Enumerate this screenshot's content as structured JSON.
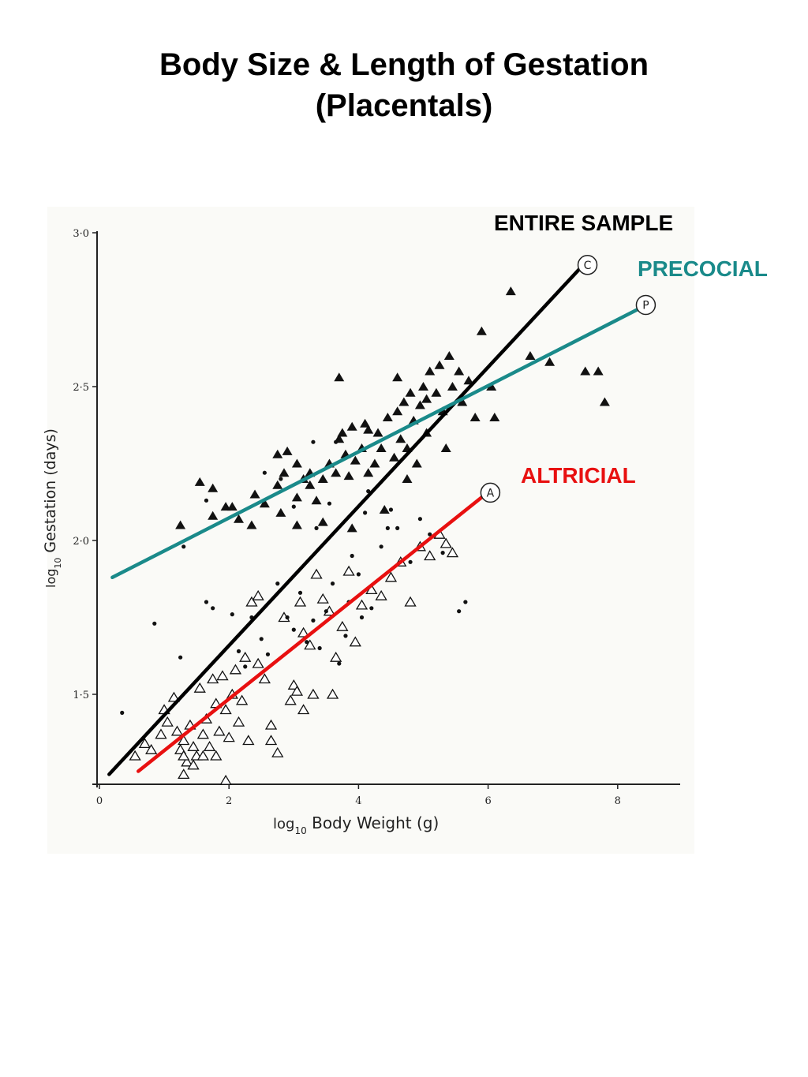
{
  "title": {
    "line1": "Body Size & Length of Gestation",
    "line2": "(Placentals)"
  },
  "labels": {
    "entire": "ENTIRE SAMPLE",
    "precocial": "PRECOCIAL",
    "altricial": "ALTRICIAL"
  },
  "colors": {
    "entire": "#000000",
    "precocial": "#1a8a8a",
    "altricial": "#e81010"
  },
  "chart_data": {
    "type": "scatter",
    "xlabel_log": "log",
    "xlabel_sub": "10",
    "xlabel_rest": "Body  Weight    (g)",
    "ylabel_log": "log",
    "ylabel_sub": "10",
    "ylabel_rest": "Gestation    (days)",
    "xlim": [
      0,
      9
    ],
    "ylim": [
      1.22,
      3.0
    ],
    "xticks": [
      {
        "v": 0,
        "t": "0"
      },
      {
        "v": 2,
        "t": "2"
      },
      {
        "v": 4,
        "t": "4"
      },
      {
        "v": 6,
        "t": "6"
      },
      {
        "v": 8,
        "t": "8"
      }
    ],
    "yticks": [
      {
        "v": 1.5,
        "t": "1·5"
      },
      {
        "v": 2.0,
        "t": "2·0"
      },
      {
        "v": 2.5,
        "t": "2·5"
      },
      {
        "v": 3.0,
        "t": "3·0"
      }
    ],
    "lines": [
      {
        "name": "C",
        "x1": 0.15,
        "y1": 1.24,
        "x2": 7.4,
        "y2": 2.88,
        "color": "#000000"
      },
      {
        "name": "P",
        "x1": 0.2,
        "y1": 1.88,
        "x2": 8.3,
        "y2": 2.75,
        "color": "#1a8a8a"
      },
      {
        "name": "A",
        "x1": 0.6,
        "y1": 1.25,
        "x2": 5.9,
        "y2": 2.14,
        "color": "#e81010"
      }
    ],
    "series": [
      {
        "marker": "filled-triangle",
        "points": [
          [
            1.25,
            2.05
          ],
          [
            1.55,
            2.19
          ],
          [
            1.75,
            2.17
          ],
          [
            1.75,
            2.08
          ],
          [
            1.95,
            2.11
          ],
          [
            2.15,
            2.07
          ],
          [
            2.35,
            2.05
          ],
          [
            2.4,
            2.15
          ],
          [
            2.55,
            2.12
          ],
          [
            2.75,
            2.18
          ],
          [
            2.85,
            2.22
          ],
          [
            2.75,
            2.28
          ],
          [
            2.9,
            2.29
          ],
          [
            3.05,
            2.25
          ],
          [
            3.05,
            2.14
          ],
          [
            3.15,
            2.2
          ],
          [
            3.25,
            2.22
          ],
          [
            3.35,
            2.13
          ],
          [
            3.45,
            2.2
          ],
          [
            3.55,
            2.25
          ],
          [
            3.65,
            2.22
          ],
          [
            3.7,
            2.33
          ],
          [
            3.75,
            2.35
          ],
          [
            3.8,
            2.28
          ],
          [
            3.85,
            2.21
          ],
          [
            3.9,
            2.37
          ],
          [
            3.95,
            2.26
          ],
          [
            4.05,
            2.3
          ],
          [
            4.1,
            2.38
          ],
          [
            4.15,
            2.22
          ],
          [
            4.25,
            2.25
          ],
          [
            4.3,
            2.35
          ],
          [
            4.35,
            2.3
          ],
          [
            4.45,
            2.4
          ],
          [
            4.55,
            2.27
          ],
          [
            4.6,
            2.42
          ],
          [
            4.65,
            2.33
          ],
          [
            4.7,
            2.45
          ],
          [
            4.75,
            2.3
          ],
          [
            4.8,
            2.48
          ],
          [
            4.85,
            2.39
          ],
          [
            4.9,
            2.25
          ],
          [
            4.95,
            2.44
          ],
          [
            5.0,
            2.5
          ],
          [
            5.05,
            2.35
          ],
          [
            5.1,
            2.55
          ],
          [
            5.2,
            2.48
          ],
          [
            5.25,
            2.57
          ],
          [
            5.3,
            2.42
          ],
          [
            5.4,
            2.6
          ],
          [
            5.45,
            2.5
          ],
          [
            5.55,
            2.55
          ],
          [
            5.6,
            2.45
          ],
          [
            5.7,
            2.52
          ],
          [
            5.8,
            2.4
          ],
          [
            5.9,
            2.68
          ],
          [
            6.05,
            2.5
          ],
          [
            6.1,
            2.4
          ],
          [
            6.35,
            2.81
          ],
          [
            6.65,
            2.6
          ],
          [
            6.95,
            2.58
          ],
          [
            7.5,
            2.55
          ],
          [
            7.7,
            2.55
          ],
          [
            7.8,
            2.45
          ],
          [
            3.7,
            2.53
          ],
          [
            4.6,
            2.53
          ],
          [
            3.9,
            2.04
          ],
          [
            3.45,
            2.06
          ],
          [
            3.05,
            2.05
          ],
          [
            2.8,
            2.09
          ],
          [
            4.4,
            2.1
          ],
          [
            5.35,
            2.3
          ],
          [
            2.05,
            2.11
          ],
          [
            3.25,
            2.18
          ],
          [
            4.75,
            2.2
          ],
          [
            5.05,
            2.46
          ],
          [
            4.15,
            2.36
          ]
        ]
      },
      {
        "marker": "open-triangle",
        "points": [
          [
            0.7,
            1.34
          ],
          [
            0.8,
            1.32
          ],
          [
            0.95,
            1.37
          ],
          [
            1.0,
            1.45
          ],
          [
            1.05,
            1.41
          ],
          [
            1.15,
            1.49
          ],
          [
            1.2,
            1.38
          ],
          [
            1.25,
            1.32
          ],
          [
            1.3,
            1.35
          ],
          [
            1.35,
            1.28
          ],
          [
            1.4,
            1.4
          ],
          [
            1.45,
            1.33
          ],
          [
            1.5,
            1.3
          ],
          [
            1.55,
            1.52
          ],
          [
            1.6,
            1.37
          ],
          [
            1.65,
            1.42
          ],
          [
            1.7,
            1.33
          ],
          [
            1.75,
            1.55
          ],
          [
            1.8,
            1.47
          ],
          [
            1.85,
            1.38
          ],
          [
            1.9,
            1.56
          ],
          [
            1.95,
            1.45
          ],
          [
            2.0,
            1.36
          ],
          [
            2.05,
            1.5
          ],
          [
            2.1,
            1.58
          ],
          [
            2.15,
            1.41
          ],
          [
            2.2,
            1.48
          ],
          [
            2.25,
            1.62
          ],
          [
            2.3,
            1.35
          ],
          [
            2.35,
            1.8
          ],
          [
            2.45,
            1.82
          ],
          [
            2.55,
            1.55
          ],
          [
            2.65,
            1.4
          ],
          [
            2.75,
            1.31
          ],
          [
            2.85,
            1.75
          ],
          [
            2.95,
            1.48
          ],
          [
            3.0,
            1.53
          ],
          [
            3.1,
            1.8
          ],
          [
            3.15,
            1.7
          ],
          [
            3.25,
            1.66
          ],
          [
            3.35,
            1.89
          ],
          [
            3.45,
            1.81
          ],
          [
            3.55,
            1.77
          ],
          [
            3.65,
            1.62
          ],
          [
            3.75,
            1.72
          ],
          [
            3.85,
            1.9
          ],
          [
            3.95,
            1.67
          ],
          [
            4.05,
            1.79
          ],
          [
            4.2,
            1.84
          ],
          [
            4.35,
            1.82
          ],
          [
            4.5,
            1.88
          ],
          [
            4.65,
            1.93
          ],
          [
            4.8,
            1.8
          ],
          [
            4.95,
            1.98
          ],
          [
            5.1,
            1.95
          ],
          [
            5.25,
            2.02
          ],
          [
            5.35,
            1.99
          ],
          [
            5.45,
            1.96
          ],
          [
            1.95,
            1.22
          ],
          [
            1.3,
            1.24
          ],
          [
            0.55,
            1.3
          ],
          [
            3.6,
            1.5
          ],
          [
            3.15,
            1.45
          ],
          [
            3.05,
            1.51
          ],
          [
            3.3,
            1.5
          ],
          [
            2.45,
            1.6
          ],
          [
            1.6,
            1.3
          ],
          [
            1.45,
            1.27
          ],
          [
            1.3,
            1.3
          ],
          [
            2.65,
            1.35
          ],
          [
            1.8,
            1.3
          ]
        ]
      },
      {
        "marker": "dot",
        "points": [
          [
            0.35,
            1.44
          ],
          [
            0.85,
            1.73
          ],
          [
            1.3,
            1.98
          ],
          [
            1.65,
            1.8
          ],
          [
            1.75,
            1.78
          ],
          [
            2.05,
            1.76
          ],
          [
            2.15,
            1.64
          ],
          [
            2.25,
            1.59
          ],
          [
            2.35,
            1.75
          ],
          [
            2.5,
            1.68
          ],
          [
            2.6,
            1.63
          ],
          [
            2.75,
            1.86
          ],
          [
            2.9,
            1.75
          ],
          [
            3.0,
            1.71
          ],
          [
            3.1,
            1.83
          ],
          [
            3.2,
            1.67
          ],
          [
            3.3,
            1.74
          ],
          [
            3.4,
            1.65
          ],
          [
            3.5,
            1.77
          ],
          [
            3.6,
            1.86
          ],
          [
            3.7,
            1.6
          ],
          [
            3.8,
            1.69
          ],
          [
            3.9,
            1.95
          ],
          [
            4.0,
            1.89
          ],
          [
            4.1,
            2.09
          ],
          [
            4.2,
            1.78
          ],
          [
            4.35,
            1.98
          ],
          [
            4.5,
            2.1
          ],
          [
            4.6,
            2.04
          ],
          [
            4.8,
            1.93
          ],
          [
            4.95,
            2.07
          ],
          [
            5.1,
            2.02
          ],
          [
            5.3,
            1.96
          ],
          [
            5.65,
            1.8
          ],
          [
            2.55,
            2.22
          ],
          [
            2.8,
            2.2
          ],
          [
            3.0,
            2.11
          ],
          [
            3.35,
            2.04
          ],
          [
            3.55,
            2.12
          ],
          [
            4.15,
            2.16
          ],
          [
            4.45,
            2.04
          ],
          [
            3.65,
            2.32
          ],
          [
            3.3,
            2.32
          ],
          [
            1.65,
            2.13
          ],
          [
            1.25,
            1.62
          ],
          [
            3.85,
            1.8
          ],
          [
            4.05,
            1.75
          ],
          [
            5.55,
            1.77
          ]
        ]
      }
    ]
  }
}
